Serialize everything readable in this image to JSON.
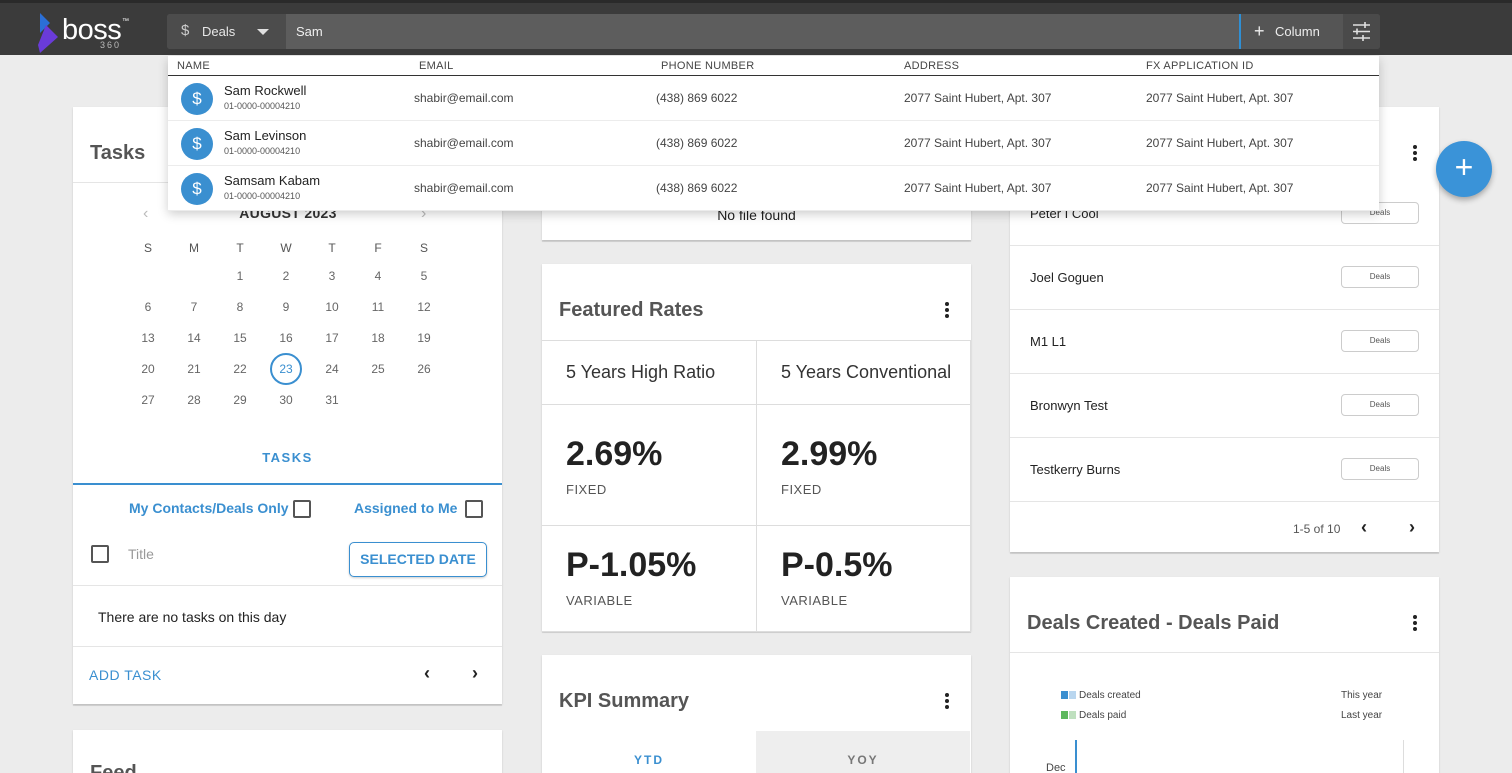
{
  "header": {
    "logo_text": "boss",
    "logo_tm": "™",
    "logo_sub": "360",
    "entity_icon": "dollar-icon",
    "entity_label": "Deals",
    "search_value": "Sam",
    "column_button": "Column",
    "accent_color": "#3a8fd0"
  },
  "search_results": {
    "headers": [
      "NAME",
      "EMAIL",
      "PHONE NUMBER",
      "ADDRESS",
      "FX APPLICATION ID"
    ],
    "rows": [
      {
        "name": "Sam Rockwell",
        "id": "01-0000-00004210",
        "email": "shabir@email.com",
        "phone": "(438) 869 6022",
        "address": "2077 Saint Hubert, Apt. 307",
        "fx_id": "2077 Saint Hubert, Apt. 307"
      },
      {
        "name": "Sam Levinson",
        "id": "01-0000-00004210",
        "email": "shabir@email.com",
        "phone": "(438) 869 6022",
        "address": "2077 Saint Hubert, Apt. 307",
        "fx_id": "2077 Saint Hubert, Apt. 307"
      },
      {
        "name": "Samsam Kabam",
        "id": "01-0000-00004210",
        "email": "shabir@email.com",
        "phone": "(438) 869 6022",
        "address": "2077 Saint Hubert, Apt. 307",
        "fx_id": "2077 Saint Hubert, Apt. 307"
      }
    ]
  },
  "tasks": {
    "title": "Tasks",
    "month": "AUGUST 2023",
    "weekdays": [
      "S",
      "M",
      "T",
      "W",
      "T",
      "F",
      "S"
    ],
    "weeks": [
      [
        "",
        "",
        "1",
        "2",
        "3",
        "4",
        "5"
      ],
      [
        "6",
        "7",
        "8",
        "9",
        "10",
        "11",
        "12"
      ],
      [
        "13",
        "14",
        "15",
        "16",
        "17",
        "18",
        "19"
      ],
      [
        "20",
        "21",
        "22",
        "23",
        "24",
        "25",
        "26"
      ],
      [
        "27",
        "28",
        "29",
        "30",
        "31",
        "",
        ""
      ]
    ],
    "selected_day": "23",
    "tab_label": "TASKS",
    "filter_my_contacts": "My Contacts/Deals Only",
    "filter_assigned": "Assigned to Me",
    "title_column": "Title",
    "selected_date_button": "SELECTED DATE",
    "empty_message": "There are no tasks on this day",
    "add_task": "ADD TASK"
  },
  "feed": {
    "title": "Feed"
  },
  "files": {
    "empty_message": "No file found"
  },
  "featured_rates": {
    "title": "Featured Rates",
    "columns": [
      {
        "heading": "5 Years High Ratio",
        "fixed_value": "2.69%",
        "fixed_label": "FIXED",
        "variable_value": "P-1.05%",
        "variable_label": "VARIABLE"
      },
      {
        "heading": "5 Years Conventional",
        "fixed_value": "2.99%",
        "fixed_label": "FIXED",
        "variable_value": "P-0.5%",
        "variable_label": "VARIABLE"
      }
    ]
  },
  "kpi": {
    "title": "KPI Summary",
    "tabs": [
      "YTD",
      "YOY"
    ]
  },
  "recent_contacts": {
    "rows": [
      {
        "name": "Peter I Cool",
        "chip": "Deals"
      },
      {
        "name": "Joel Goguen",
        "chip": "Deals"
      },
      {
        "name": "M1 L1",
        "chip": "Deals"
      },
      {
        "name": "Bronwyn Test",
        "chip": "Deals"
      },
      {
        "name": "Testkerry Burns",
        "chip": "Deals"
      }
    ],
    "pagination": "1-5 of 10"
  },
  "deals_chart": {
    "title": "Deals Created - Deals Paid",
    "legend": [
      {
        "label": "Deals created",
        "color": "#3a8fd0"
      },
      {
        "label": "Deals paid",
        "color": "#5cb85c"
      }
    ],
    "legend_right": [
      "This year",
      "Last year"
    ],
    "axis_label": "Dec"
  }
}
